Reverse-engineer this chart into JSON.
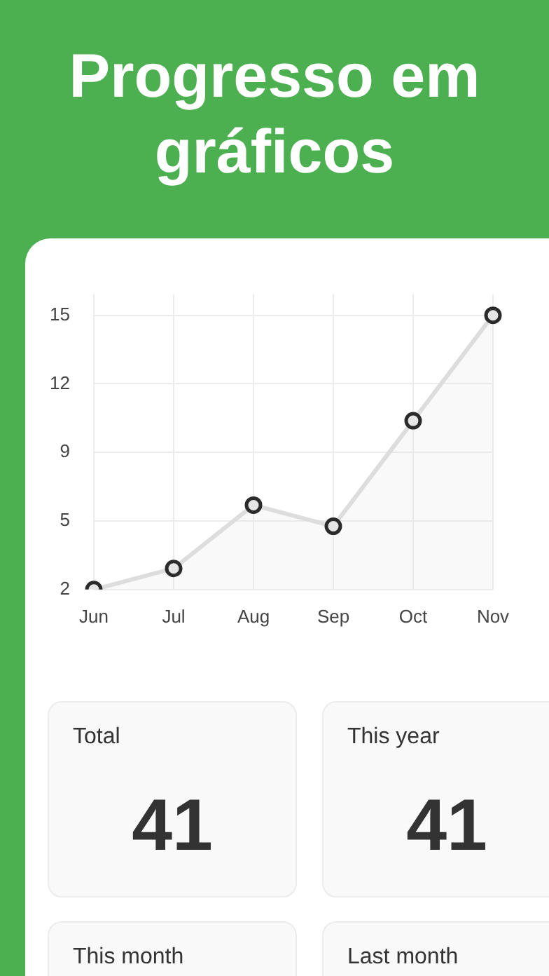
{
  "chart_data": [
    {
      "type": "area",
      "title": "Progresso em gráficos",
      "categories": [
        "Jun",
        "Jul",
        "Aug",
        "Sep",
        "Oct",
        "Nov"
      ],
      "values": [
        2,
        3,
        6,
        5,
        10,
        15
      ],
      "color": "#dddddd",
      "ylim": [
        2,
        16
      ],
      "yticks": [
        2,
        {
          "value": 5.25,
          "label": "5"
        },
        {
          "value": 8.5,
          "label": "9"
        },
        {
          "value": 11.75,
          "label": "12"
        },
        15
      ],
      "grid": true,
      "marker": "circle"
    },
    {
      "type": "other",
      "annotations": [
        "Total",
        "41",
        "This year",
        "41",
        "This month",
        "Last month"
      ]
    }
  ]
}
